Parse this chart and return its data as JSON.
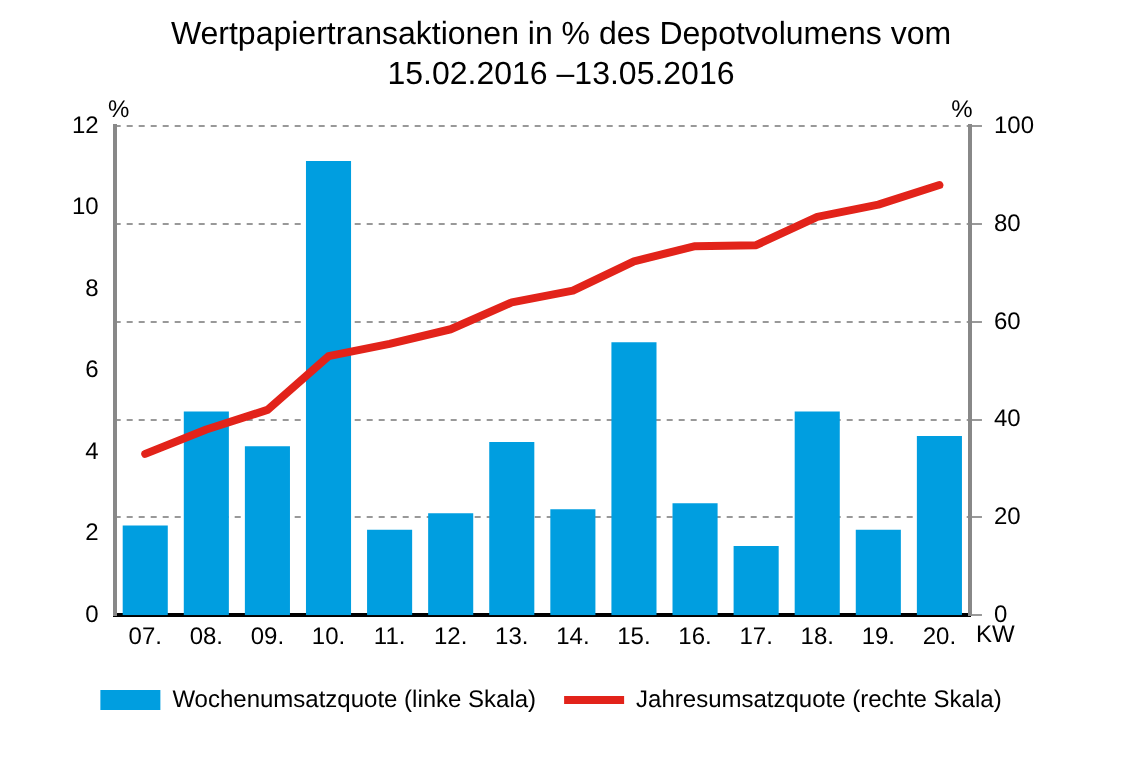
{
  "chart_data": {
    "type": "bar",
    "title": "Wertpapiertransaktionen in % des Depotvolumens vom 15.02.2016 –13.05.2016",
    "xlabel": "KW",
    "ylabel": "%",
    "y2label": "%",
    "categories": [
      "07.",
      "08.",
      "09.",
      "10.",
      "11.",
      "12.",
      "13.",
      "14.",
      "15.",
      "16.",
      "17.",
      "18.",
      "19.",
      "20."
    ],
    "series": [
      {
        "name": "Wochenumsatzquote (linke Skala)",
        "color": "#009ee0",
        "values": [
          2.2,
          5.0,
          4.15,
          11.15,
          2.1,
          2.5,
          4.25,
          2.6,
          6.7,
          2.75,
          1.7,
          5.0,
          2.1,
          4.4
        ]
      },
      {
        "name": "Jahresumsatzquote (rechte Skala)",
        "type": "line",
        "axis": "y2",
        "color": "#e2231a",
        "values": [
          33,
          38,
          42,
          53,
          55.5,
          58.5,
          64,
          66.4,
          72.4,
          75.5,
          75.7,
          81.5,
          84,
          88
        ]
      }
    ],
    "ylim": [
      0,
      12
    ],
    "yticks": [
      0,
      2,
      4,
      6,
      8,
      10,
      12
    ],
    "y2lim": [
      0,
      100
    ],
    "y2ticks": [
      0,
      20,
      40,
      60,
      80,
      100
    ],
    "grid": "y2",
    "legend": "bottom",
    "marker": "none",
    "line_style": "solid"
  }
}
